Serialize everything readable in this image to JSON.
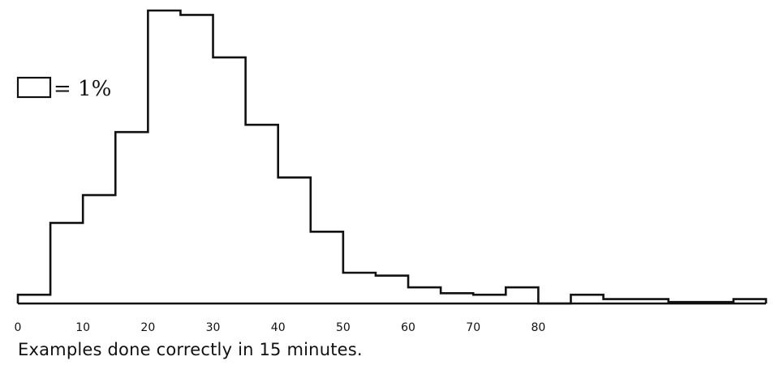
{
  "chart_data": {
    "type": "bar",
    "title": "",
    "xlabel": "Examples done correctly in 15 minutes.",
    "ylabel": "",
    "legend": {
      "label": "= 1%"
    },
    "x_tick_labels": [
      "0",
      "10",
      "20",
      "30",
      "40",
      "50",
      "60",
      "70",
      "80"
    ],
    "xlim": [
      0,
      115
    ],
    "ylim": [
      0,
      20
    ],
    "grid": false,
    "bin_width": 5,
    "bins": [
      {
        "start": 0,
        "end": 5,
        "value": 0.6
      },
      {
        "start": 5,
        "end": 10,
        "value": 5.5
      },
      {
        "start": 10,
        "end": 15,
        "value": 7.4
      },
      {
        "start": 15,
        "end": 20,
        "value": 11.7
      },
      {
        "start": 20,
        "end": 25,
        "value": 20.0
      },
      {
        "start": 25,
        "end": 30,
        "value": 19.7
      },
      {
        "start": 30,
        "end": 35,
        "value": 16.8
      },
      {
        "start": 35,
        "end": 40,
        "value": 12.2
      },
      {
        "start": 40,
        "end": 45,
        "value": 8.6
      },
      {
        "start": 45,
        "end": 50,
        "value": 4.9
      },
      {
        "start": 50,
        "end": 55,
        "value": 2.1
      },
      {
        "start": 55,
        "end": 60,
        "value": 1.9
      },
      {
        "start": 60,
        "end": 65,
        "value": 1.1
      },
      {
        "start": 65,
        "end": 70,
        "value": 0.7
      },
      {
        "start": 70,
        "end": 75,
        "value": 0.6
      },
      {
        "start": 75,
        "end": 80,
        "value": 1.1
      },
      {
        "start": 80,
        "end": 85,
        "value": 0.0
      },
      {
        "start": 85,
        "end": 90,
        "value": 0.6
      },
      {
        "start": 90,
        "end": 95,
        "value": 0.3
      },
      {
        "start": 95,
        "end": 100,
        "value": 0.3
      },
      {
        "start": 100,
        "end": 105,
        "value": 0.1
      },
      {
        "start": 105,
        "end": 110,
        "value": 0.1
      },
      {
        "start": 110,
        "end": 115,
        "value": 0.3
      }
    ]
  }
}
